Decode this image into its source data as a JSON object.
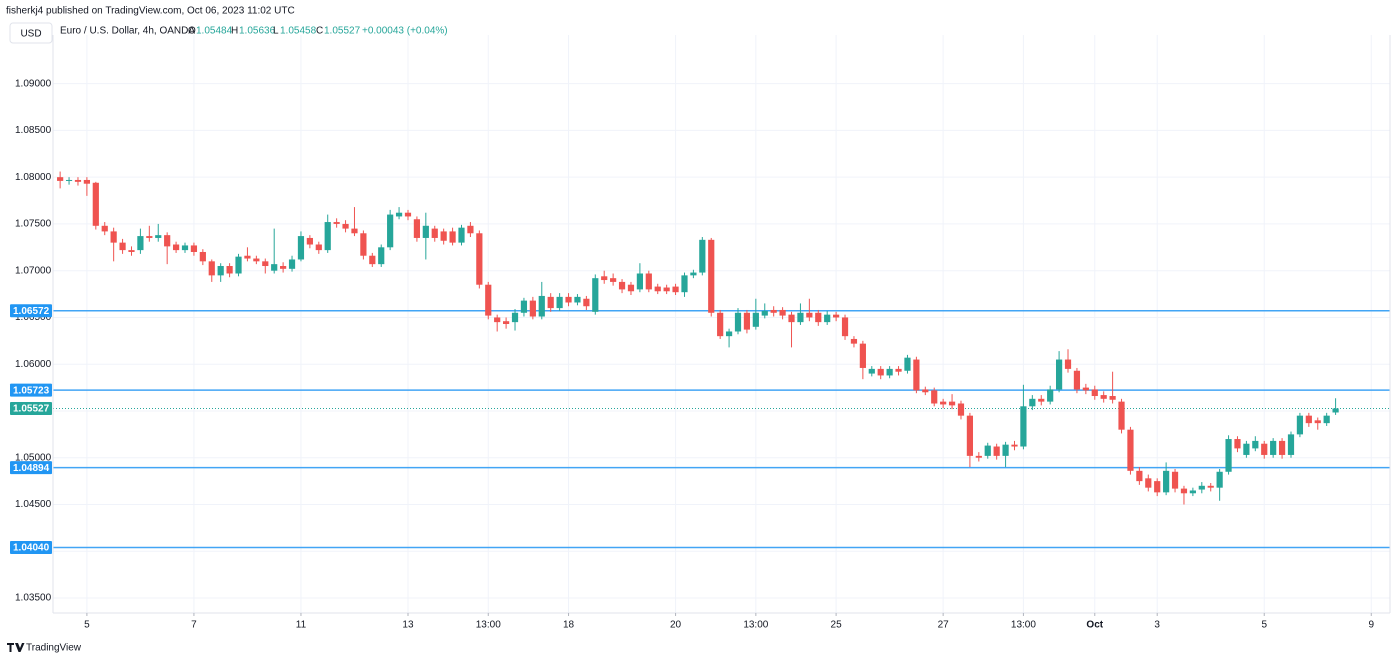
{
  "chart_data": {
    "type": "candlestick",
    "header": "fisherkj4 published on TradingView.com, Oct 06, 2023 11:02 UTC",
    "currency": "USD",
    "symbol": "Euro / U.S. Dollar, 4h, OANDA",
    "legend_labels": [
      "O",
      "H",
      "L",
      "C"
    ],
    "change": "+0.00043 (+0.04%)",
    "brand": "TradingView",
    "up_color": "#26a69a",
    "down_color": "#ef5350",
    "level_color": "#42a5f5",
    "grid": true,
    "ylim": [
      1.0334,
      1.0952
    ],
    "yticks": [
      {
        "value": 1.035,
        "label": "1.03500"
      },
      {
        "value": 1.04,
        "label": "1.04000"
      },
      {
        "value": 1.045,
        "label": "1.04500"
      },
      {
        "value": 1.05,
        "label": "1.05000"
      },
      {
        "value": 1.055,
        "label": "1.05500"
      },
      {
        "value": 1.06,
        "label": "1.06000"
      },
      {
        "value": 1.065,
        "label": "1.06500"
      },
      {
        "value": 1.07,
        "label": "1.07000"
      },
      {
        "value": 1.075,
        "label": "1.07500"
      },
      {
        "value": 1.08,
        "label": "1.08000"
      },
      {
        "value": 1.085,
        "label": "1.08500"
      },
      {
        "value": 1.09,
        "label": "1.09000"
      }
    ],
    "xlim": [
      -0.8,
      149.1
    ],
    "xticks": [
      {
        "value": 3,
        "label": "5"
      },
      {
        "value": 15,
        "label": "7"
      },
      {
        "value": 27,
        "label": "11"
      },
      {
        "value": 39,
        "label": "13"
      },
      {
        "value": 48,
        "label": "13:00"
      },
      {
        "value": 57,
        "label": "18"
      },
      {
        "value": 69,
        "label": "20"
      },
      {
        "value": 78,
        "label": "13:00"
      },
      {
        "value": 87,
        "label": "25"
      },
      {
        "value": 99,
        "label": "27"
      },
      {
        "value": 108,
        "label": "13:00"
      },
      {
        "value": 116,
        "label": "Oct"
      },
      {
        "value": 123,
        "label": "3"
      },
      {
        "value": 135,
        "label": "5"
      },
      {
        "value": 147,
        "label": "9"
      }
    ],
    "levels": [
      1.06572,
      1.05723,
      1.04894,
      {
        "value": 1.0404,
        "label": "1.04040"
      }
    ],
    "open": [
      1.08,
      1.0796,
      1.0797,
      1.0797,
      1.0794,
      1.0748,
      1.0742,
      1.073,
      1.0722,
      1.0722,
      1.0737,
      1.0735,
      1.0738,
      1.0728,
      1.0722,
      1.0727,
      1.072,
      1.071,
      1.0695,
      1.0705,
      1.0697,
      1.0716,
      1.0713,
      1.071,
      1.07,
      1.0705,
      1.0702,
      1.0712,
      1.0735,
      1.0728,
      1.0722,
      1.0752,
      1.075,
      1.0745,
      1.074,
      1.0716,
      1.0707,
      1.0725,
      1.0758,
      1.0762,
      1.0755,
      1.0735,
      1.0745,
      1.0742,
      1.0742,
      1.073,
      1.0748,
      1.074,
      1.0685,
      1.065,
      1.0646,
      1.0645,
      1.0655,
      1.0668,
      1.0651,
      1.0672,
      1.066,
      1.0672,
      1.0666,
      1.067,
      1.0656,
      1.0694,
      1.0692,
      1.0688,
      1.0685,
      1.068,
      1.0697,
      1.0683,
      1.0682,
      1.0683,
      1.0677,
      1.0695,
      1.0698,
      1.0733,
      1.0655,
      1.063,
      1.0635,
      1.0655,
      1.064,
      1.0652,
      1.0658,
      1.0658,
      1.0653,
      1.0645,
      1.0655,
      1.0655,
      1.0645,
      1.0653,
      1.065,
      1.0627,
      1.0622,
      1.059,
      1.0595,
      1.0588,
      1.0595,
      1.0593,
      1.0605,
      1.0573,
      1.0572,
      1.056,
      1.056,
      1.0558,
      1.0545,
      1.0502,
      1.0502,
      1.0512,
      1.0502,
      1.0514,
      1.0512,
      1.0555,
      1.0563,
      1.056,
      1.0573,
      1.0605,
      1.0593,
      1.0575,
      1.0573,
      1.0567,
      1.0566,
      1.056,
      1.053,
      1.0486,
      1.0478,
      1.0475,
      1.0463,
      1.0485,
      1.0467,
      1.0462,
      1.0466,
      1.047,
      1.0468,
      1.0485,
      1.052,
      1.0503,
      1.051,
      1.0515,
      1.0503,
      1.0518,
      1.0503,
      1.0525,
      1.0545,
      1.054,
      1.0537,
      1.05484
    ],
    "high": [
      1.0806,
      1.08,
      1.08,
      1.08,
      1.0795,
      1.0752,
      1.0746,
      1.0734,
      1.0726,
      1.0745,
      1.0748,
      1.075,
      1.0741,
      1.0731,
      1.073,
      1.073,
      1.0723,
      1.0712,
      1.0708,
      1.0708,
      1.0718,
      1.0725,
      1.0716,
      1.0713,
      1.0745,
      1.0709,
      1.0716,
      1.0742,
      1.0738,
      1.0731,
      1.076,
      1.0756,
      1.0754,
      1.0768,
      1.0743,
      1.0719,
      1.0728,
      1.0765,
      1.0768,
      1.0765,
      1.0758,
      1.0762,
      1.0748,
      1.0745,
      1.0746,
      1.0749,
      1.0752,
      1.0743,
      1.0688,
      1.0653,
      1.065,
      1.0659,
      1.0671,
      1.0672,
      1.0688,
      1.0676,
      1.0676,
      1.0676,
      1.0675,
      1.0673,
      1.0696,
      1.07,
      1.0697,
      1.0691,
      1.0688,
      1.0708,
      1.07,
      1.0686,
      1.0685,
      1.0686,
      1.0698,
      1.0701,
      1.0736,
      1.0735,
      1.0658,
      1.0638,
      1.066,
      1.0658,
      1.067,
      1.0665,
      1.0662,
      1.0661,
      1.0656,
      1.0665,
      1.067,
      1.0658,
      1.0657,
      1.0656,
      1.0653,
      1.063,
      1.0625,
      1.0598,
      1.0598,
      1.0598,
      1.0598,
      1.061,
      1.0608,
      1.0576,
      1.0575,
      1.0563,
      1.0568,
      1.0561,
      1.0548,
      1.0506,
      1.0516,
      1.0515,
      1.0517,
      1.0518,
      1.0578,
      1.0567,
      1.0567,
      1.0577,
      1.0614,
      1.0616,
      1.0596,
      1.0579,
      1.0577,
      1.0571,
      1.0592,
      1.0563,
      1.0533,
      1.049,
      1.0482,
      1.0478,
      1.0495,
      1.0488,
      1.047,
      1.0468,
      1.0474,
      1.0473,
      1.0488,
      1.0524,
      1.0523,
      1.0518,
      1.0523,
      1.0518,
      1.0521,
      1.0521,
      1.0528,
      1.0548,
      1.0548,
      1.0543,
      1.0548,
      1.05636
    ],
    "low": [
      1.0788,
      1.0792,
      1.0791,
      1.078,
      1.0744,
      1.0738,
      1.071,
      1.0718,
      1.0716,
      1.0718,
      1.0731,
      1.0731,
      1.0707,
      1.0719,
      1.0719,
      1.0716,
      1.0706,
      1.0688,
      1.0688,
      1.0693,
      1.0694,
      1.071,
      1.0707,
      1.0697,
      1.0697,
      1.0698,
      1.0699,
      1.071,
      1.0724,
      1.0718,
      1.0719,
      1.0746,
      1.0741,
      1.0737,
      1.0712,
      1.0704,
      1.0704,
      1.0722,
      1.0755,
      1.0754,
      1.0731,
      1.0712,
      1.0731,
      1.0728,
      1.0727,
      1.0727,
      1.0736,
      1.0681,
      1.0648,
      1.0635,
      1.0638,
      1.0636,
      1.0651,
      1.0648,
      1.0648,
      1.0656,
      1.0657,
      1.0662,
      1.0663,
      1.0658,
      1.0653,
      1.0686,
      1.0684,
      1.0676,
      1.0674,
      1.0677,
      1.0677,
      1.0675,
      1.0675,
      1.0674,
      1.0672,
      1.0692,
      1.0695,
      1.0651,
      1.0627,
      1.0618,
      1.0632,
      1.0633,
      1.0637,
      1.0649,
      1.0651,
      1.0648,
      1.0618,
      1.0642,
      1.0646,
      1.0641,
      1.0642,
      1.0646,
      1.0626,
      1.0618,
      1.0584,
      1.0587,
      1.0584,
      1.0585,
      1.0588,
      1.059,
      1.0569,
      1.0567,
      1.0555,
      1.0553,
      1.0552,
      1.0541,
      1.049,
      1.0496,
      1.0499,
      1.0498,
      1.049,
      1.0508,
      1.0509,
      1.0551,
      1.0556,
      1.0557,
      1.057,
      1.0591,
      1.0569,
      1.0568,
      1.0562,
      1.0559,
      1.0558,
      1.0526,
      1.0482,
      1.0471,
      1.0464,
      1.0459,
      1.046,
      1.0463,
      1.045,
      1.0459,
      1.0462,
      1.0464,
      1.0454,
      1.0482,
      1.0506,
      1.05,
      1.0507,
      1.0499,
      1.05,
      1.0499,
      1.05,
      1.0522,
      1.0533,
      1.053,
      1.0534,
      1.05458
    ],
    "close": [
      1.0796,
      1.0797,
      1.0795,
      1.0793,
      1.0748,
      1.0742,
      1.073,
      1.0722,
      1.072,
      1.0737,
      1.0735,
      1.0738,
      1.0726,
      1.0722,
      1.0727,
      1.072,
      1.071,
      1.0695,
      1.0705,
      1.0697,
      1.0715,
      1.0713,
      1.071,
      1.0705,
      1.0707,
      1.0702,
      1.0712,
      1.0737,
      1.0728,
      1.0722,
      1.0752,
      1.075,
      1.0745,
      1.074,
      1.0716,
      1.0707,
      1.0725,
      1.076,
      1.0762,
      1.0758,
      1.0735,
      1.0748,
      1.0735,
      1.0732,
      1.073,
      1.0746,
      1.074,
      1.0685,
      1.0652,
      1.0645,
      1.0643,
      1.0655,
      1.0668,
      1.0651,
      1.0673,
      1.066,
      1.0672,
      1.0666,
      1.0672,
      1.0662,
      1.0692,
      1.069,
      1.0688,
      1.068,
      1.0678,
      1.0697,
      1.068,
      1.0678,
      1.0678,
      1.0677,
      1.0695,
      1.0698,
      1.0733,
      1.0655,
      1.063,
      1.0635,
      1.0655,
      1.0637,
      1.0655,
      1.0657,
      1.0655,
      1.0652,
      1.0645,
      1.0655,
      1.065,
      1.0645,
      1.0653,
      1.065,
      1.063,
      1.0622,
      1.0596,
      1.0595,
      1.0588,
      1.0595,
      1.0592,
      1.0607,
      1.0572,
      1.057,
      1.0558,
      1.0557,
      1.0556,
      1.0545,
      1.0502,
      1.05,
      1.0513,
      1.0502,
      1.0514,
      1.0512,
      1.0555,
      1.0563,
      1.056,
      1.0573,
      1.0605,
      1.0595,
      1.0573,
      1.0572,
      1.0566,
      1.0563,
      1.0562,
      1.053,
      1.0486,
      1.0475,
      1.0468,
      1.0463,
      1.0486,
      1.0467,
      1.0462,
      1.0465,
      1.047,
      1.0468,
      1.0485,
      1.052,
      1.051,
      1.0515,
      1.0518,
      1.0503,
      1.0518,
      1.0503,
      1.0525,
      1.0545,
      1.0537,
      1.0537,
      1.0545,
      1.05527
    ]
  }
}
